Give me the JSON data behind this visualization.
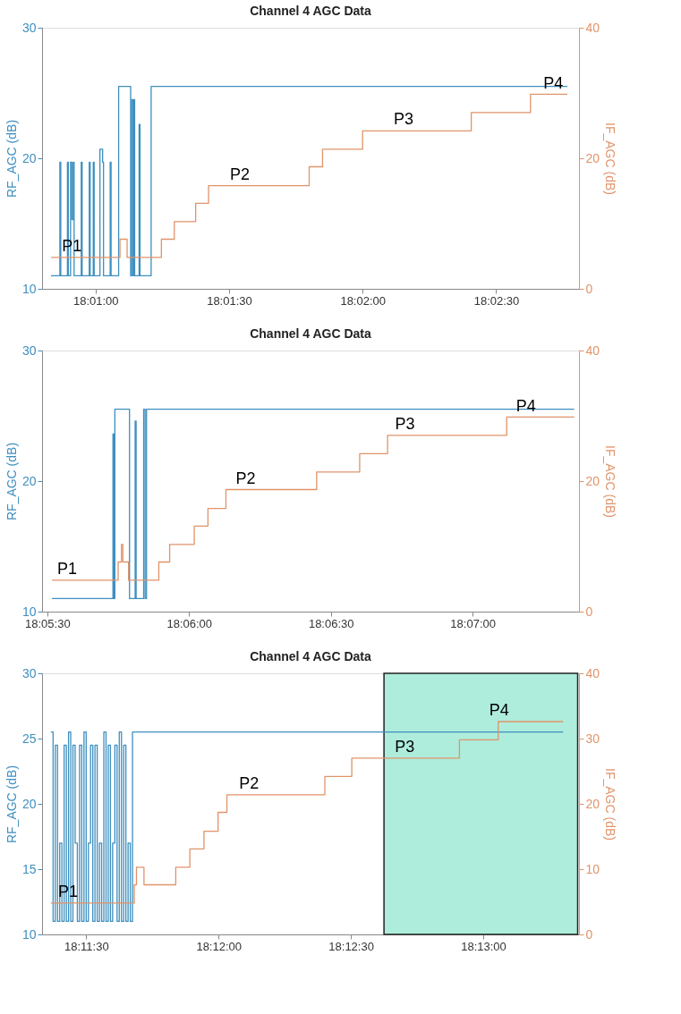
{
  "chart_data": [
    {
      "type": "step",
      "title": "Channel 4 AGC Data",
      "ylabel": "RF_AGC (dB)",
      "y2label": "IF_AGC (dB)",
      "grid": false,
      "xlim": [
        18.013333,
        18.046833
      ],
      "xticks": [
        {
          "value": 18.016667,
          "label": "18:01:00"
        },
        {
          "value": 18.025,
          "label": "18:01:30"
        },
        {
          "value": 18.033333,
          "label": "18:02:00"
        },
        {
          "value": 18.041667,
          "label": "18:02:30"
        }
      ],
      "ylim": [
        10,
        30
      ],
      "yticks": [
        10,
        20,
        30
      ],
      "y2lim": [
        0,
        40
      ],
      "y2ticks": [
        0,
        20,
        40
      ],
      "series": [
        {
          "color": "#3e8fbf",
          "x": [
            18.013889,
            18.014444,
            18.0145,
            18.014917,
            18.014972,
            18.015111,
            18.015194,
            18.015278,
            18.015333,
            18.015778,
            18.015833,
            18.016278,
            18.016333,
            18.016528,
            18.016583,
            18.016944,
            18.017111,
            18.017167,
            18.017583,
            18.017639,
            18.018111,
            18.018861,
            18.018917,
            18.019,
            18.019056,
            18.019111,
            18.019389,
            18.019444,
            18.020139,
            18.046111
          ],
          "values": [
            11.0,
            19.7,
            11.0,
            19.7,
            11.0,
            19.7,
            15.3,
            19.7,
            11.0,
            19.7,
            11.0,
            19.7,
            11.0,
            19.7,
            11.0,
            20.7,
            19.7,
            11.0,
            19.7,
            11.0,
            25.5,
            11.0,
            24.5,
            11.0,
            24.5,
            11.0,
            22.6,
            11.0,
            25.5,
            25.5
          ]
        },
        {
          "color": "#e0946a",
          "axis": "y2",
          "x": [
            18.013889,
            18.018194,
            18.018639,
            18.020778,
            18.021583,
            18.022917,
            18.023722,
            18.03,
            18.030833,
            18.033333,
            18.040111,
            18.043806,
            18.046111
          ],
          "values": [
            4.8,
            7.6,
            4.8,
            7.6,
            10.3,
            13.1,
            15.8,
            18.7,
            21.4,
            24.2,
            27.0,
            29.8,
            29.8
          ]
        }
      ],
      "annotations": [
        {
          "text": "P1",
          "x": 18.015194,
          "y": 12.6
        },
        {
          "text": "P2",
          "x": 18.025667,
          "y": 18.1
        },
        {
          "text": "P3",
          "x": 18.035889,
          "y": 22.3
        },
        {
          "text": "P4",
          "x": 18.045222,
          "y": 25.1
        }
      ]
    },
    {
      "type": "step",
      "title": "Channel 4 AGC Data",
      "ylabel": "RF_AGC (dB)",
      "y2label": "IF_AGC (dB)",
      "grid": false,
      "xlim": [
        18.091361,
        18.122917
      ],
      "xticks": [
        {
          "value": 18.091667,
          "label": "18:05:30"
        },
        {
          "value": 18.1,
          "label": "18:06:00"
        },
        {
          "value": 18.108333,
          "label": "18:06:30"
        },
        {
          "value": 18.116667,
          "label": "18:07:00"
        }
      ],
      "ylim": [
        10,
        30
      ],
      "yticks": [
        10,
        20,
        30
      ],
      "y2lim": [
        0,
        40
      ],
      "y2ticks": [
        0,
        20,
        40
      ],
      "series": [
        {
          "color": "#3e8fbf",
          "x": [
            18.091944,
            18.095528,
            18.095583,
            18.095639,
            18.0965,
            18.096833,
            18.096889,
            18.097333,
            18.097417,
            18.0975,
            18.122639
          ],
          "values": [
            11.0,
            23.6,
            11.0,
            25.5,
            11.0,
            24.6,
            11.0,
            25.5,
            11.0,
            25.5,
            25.5
          ]
        },
        {
          "color": "#e0946a",
          "axis": "y2",
          "x": [
            18.091944,
            18.095833,
            18.096028,
            18.096111,
            18.096444,
            18.098222,
            18.098861,
            18.100306,
            18.101111,
            18.102167,
            18.1075,
            18.110028,
            18.111667,
            18.118667,
            18.122639
          ],
          "values": [
            4.8,
            7.6,
            10.3,
            7.6,
            4.8,
            7.6,
            10.3,
            13.1,
            15.8,
            18.7,
            21.4,
            24.2,
            27.0,
            29.8,
            29.8
          ]
        }
      ],
      "annotations": [
        {
          "text": "P1",
          "x": 18.092833,
          "y": 12.6
        },
        {
          "text": "P2",
          "x": 18.103333,
          "y": 19.5
        },
        {
          "text": "P3",
          "x": 18.112694,
          "y": 23.7
        },
        {
          "text": "P4",
          "x": 18.119806,
          "y": 25.1
        }
      ]
    },
    {
      "type": "step",
      "title": "Channel 4 AGC Data",
      "ylabel": "RF_AGC (dB)",
      "y2label": "IF_AGC (dB)",
      "grid": false,
      "xlim": [
        18.188889,
        18.222694
      ],
      "xticks": [
        {
          "value": 18.191667,
          "label": "18:11:30"
        },
        {
          "value": 18.2,
          "label": "18:12:00"
        },
        {
          "value": 18.208333,
          "label": "18:12:30"
        },
        {
          "value": 18.216667,
          "label": "18:13:00"
        }
      ],
      "ylim": [
        10,
        30
      ],
      "yticks": [
        10,
        15,
        20,
        25,
        30
      ],
      "y2lim": [
        0,
        40
      ],
      "y2ticks": [
        0,
        10,
        20,
        30,
        40
      ],
      "bands": [
        {
          "axis": "x",
          "from": 18.210417,
          "to": 18.222611,
          "color": "#aeecdc"
        }
      ],
      "series": [
        {
          "color": "#3e8fbf",
          "x": [
            18.189444,
            18.189583,
            18.189722,
            18.189861,
            18.19,
            18.190139,
            18.190278,
            18.190417,
            18.190556,
            18.190694,
            18.190833,
            18.190972,
            18.191111,
            18.19125,
            18.191389,
            18.191528,
            18.191667,
            18.191806,
            18.191944,
            18.192083,
            18.192222,
            18.192361,
            18.1925,
            18.192639,
            18.192778,
            18.192917,
            18.193056,
            18.193194,
            18.193333,
            18.193472,
            18.193611,
            18.19375,
            18.193889,
            18.194028,
            18.194167,
            18.194306,
            18.194444,
            18.194583,
            18.221694
          ],
          "values": [
            25.5,
            11.0,
            24.5,
            11.0,
            17.0,
            11.0,
            24.5,
            11.0,
            25.5,
            11.0,
            24.5,
            17.0,
            11.0,
            24.5,
            11.0,
            25.5,
            11.0,
            17.0,
            24.5,
            11.0,
            24.5,
            11.0,
            17.0,
            11.0,
            25.5,
            11.0,
            24.5,
            11.0,
            17.0,
            24.5,
            11.0,
            25.5,
            11.0,
            24.5,
            11.0,
            17.0,
            11.0,
            25.5,
            25.5
          ]
        },
        {
          "color": "#e0946a",
          "axis": "y2",
          "x": [
            18.189444,
            18.194694,
            18.194833,
            18.195306,
            18.197306,
            18.198194,
            18.199083,
            18.199972,
            18.200528,
            18.206694,
            18.208389,
            18.215167,
            18.217611,
            18.221694
          ],
          "values": [
            4.8,
            7.6,
            10.3,
            7.6,
            10.3,
            13.1,
            15.8,
            18.7,
            21.4,
            24.2,
            27.0,
            29.8,
            32.6,
            32.6
          ]
        }
      ],
      "annotations": [
        {
          "text": "P1",
          "x": 18.190528,
          "y": 12.6
        },
        {
          "text": "P2",
          "x": 18.201917,
          "y": 20.9
        },
        {
          "text": "P3",
          "x": 18.211722,
          "y": 23.7
        },
        {
          "text": "P4",
          "x": 18.217667,
          "y": 26.5
        }
      ]
    }
  ]
}
